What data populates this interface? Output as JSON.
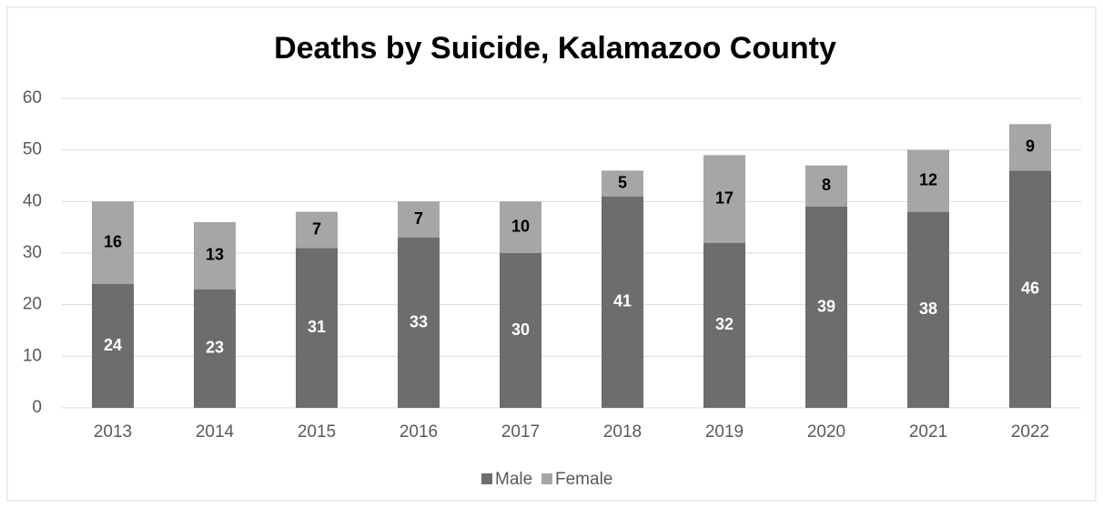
{
  "chart_data": {
    "type": "stacked_bar",
    "title": "Deaths by Suicide, Kalamazoo County",
    "categories": [
      "2013",
      "2014",
      "2015",
      "2016",
      "2017",
      "2018",
      "2019",
      "2020",
      "2021",
      "2022"
    ],
    "series": [
      {
        "name": "Male",
        "color": "#6d6d6d",
        "values": [
          24,
          23,
          31,
          33,
          30,
          41,
          32,
          39,
          38,
          46
        ]
      },
      {
        "name": "Female",
        "color": "#a6a6a6",
        "values": [
          16,
          13,
          7,
          7,
          10,
          5,
          17,
          8,
          12,
          9
        ]
      }
    ],
    "ylim": [
      0,
      60
    ],
    "yticks": [
      0,
      10,
      20,
      30,
      40,
      50,
      60
    ],
    "grid": true,
    "legend": "bottom"
  }
}
